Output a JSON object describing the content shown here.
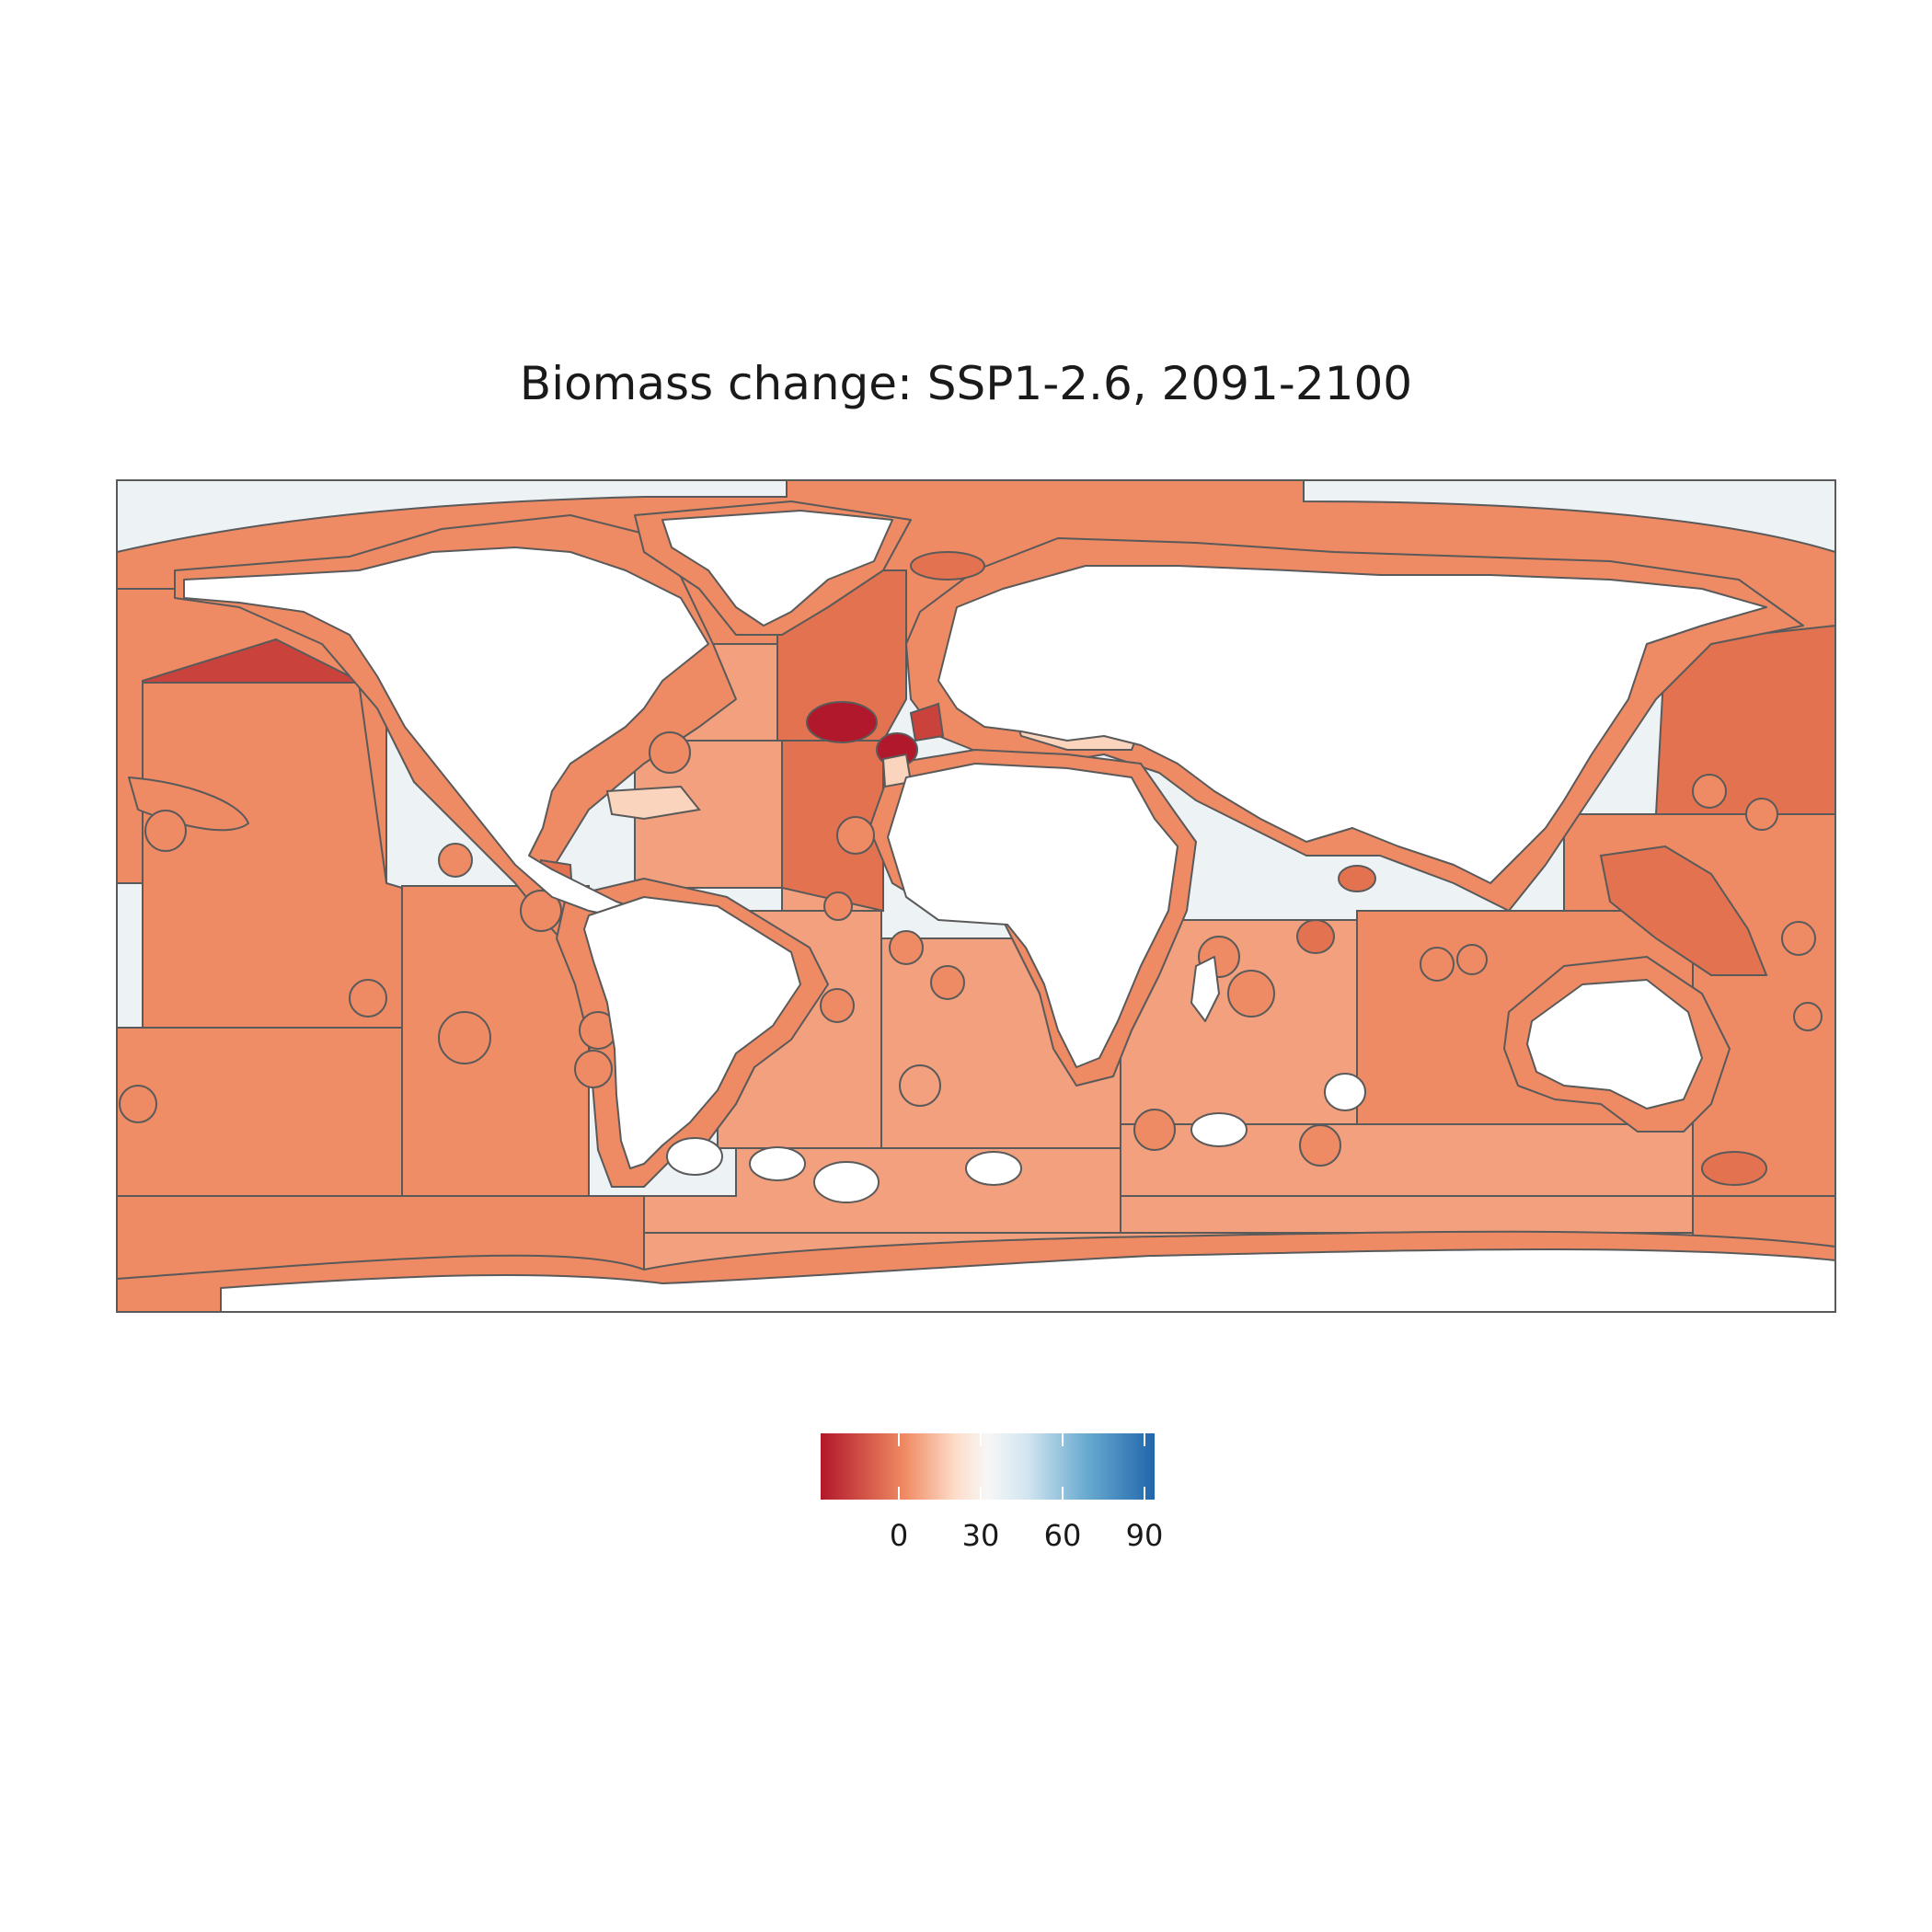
{
  "title": "Biomass change: SSP1-2.6, 2091-2100",
  "legend": {
    "ticks": [
      "0",
      "30",
      "60",
      "90"
    ],
    "gradient_colors": [
      "#b2182b",
      "#ef8a62",
      "#fddbc7",
      "#f7f7f7",
      "#d1e5f0",
      "#67a9cf",
      "#2166ac"
    ]
  },
  "colors": {
    "land": "#ffffff",
    "outside": "#edf2f5",
    "border": "#5a5a5a",
    "strong_decline": "#b2182b",
    "decline": "#c9423b",
    "moderate_decline": "#e27250",
    "mild_decline": "#ee8a64",
    "slight_decline": "#f2a07d",
    "near_zero": "#fbd4bd",
    "increase": "#2c6fad"
  }
}
